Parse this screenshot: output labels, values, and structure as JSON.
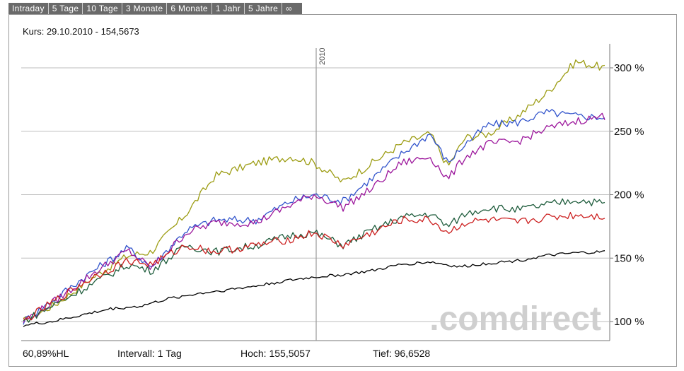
{
  "tabs": [
    "Intraday",
    "5 Tage",
    "10 Tage",
    "3 Monate",
    "6 Monate",
    "1 Jahr",
    "5 Jahre",
    "∞"
  ],
  "header": {
    "kurs_label": "Kurs: 29.10.2010 - 154,5673"
  },
  "watermark": ".comdirect",
  "footer": {
    "hl": "60,89%HL",
    "intervall": "Intervall: 1 Tag",
    "hoch": "Hoch: 155,5057",
    "tief": "Tief: 96,6528"
  },
  "colors": {
    "black": "#000000",
    "olive": "#9c9c12",
    "blue": "#3355cc",
    "purple": "#9c169c",
    "green": "#1e5c3c",
    "red": "#cc1f1f",
    "grid": "#bdbdbd"
  },
  "chart_data": {
    "type": "line",
    "y_ticks": [
      "100 %",
      "150 %",
      "200 %",
      "250 %",
      "300 %"
    ],
    "ylim": [
      85,
      310
    ],
    "xlim": [
      0,
      1
    ],
    "year_marker": {
      "label": "2010",
      "x": 0.5
    },
    "series": [
      {
        "color": "#9c9c12",
        "x": [
          0,
          0.06,
          0.12,
          0.18,
          0.22,
          0.28,
          0.33,
          0.4,
          0.46,
          0.5,
          0.55,
          0.6,
          0.65,
          0.7,
          0.73,
          0.76,
          0.8,
          0.85,
          0.9,
          0.95,
          1.0
        ],
        "y": [
          100,
          115,
          135,
          152,
          155,
          185,
          215,
          225,
          230,
          225,
          210,
          225,
          240,
          248,
          222,
          245,
          248,
          262,
          280,
          305,
          300
        ]
      },
      {
        "color": "#3355cc",
        "x": [
          0,
          0.06,
          0.12,
          0.18,
          0.22,
          0.28,
          0.33,
          0.4,
          0.46,
          0.5,
          0.55,
          0.6,
          0.65,
          0.7,
          0.73,
          0.76,
          0.8,
          0.85,
          0.9,
          0.95,
          1.0
        ],
        "y": [
          100,
          120,
          140,
          158,
          143,
          172,
          180,
          180,
          195,
          200,
          195,
          213,
          232,
          248,
          225,
          240,
          255,
          257,
          265,
          262,
          261
        ]
      },
      {
        "color": "#9c169c",
        "x": [
          0,
          0.06,
          0.12,
          0.18,
          0.22,
          0.28,
          0.33,
          0.4,
          0.46,
          0.5,
          0.55,
          0.6,
          0.65,
          0.7,
          0.73,
          0.76,
          0.8,
          0.85,
          0.9,
          0.95,
          1.0
        ],
        "y": [
          100,
          118,
          138,
          156,
          142,
          170,
          178,
          178,
          192,
          200,
          190,
          205,
          225,
          230,
          212,
          230,
          240,
          242,
          252,
          258,
          262
        ]
      },
      {
        "color": "#1e5c3c",
        "x": [
          0,
          0.06,
          0.12,
          0.18,
          0.22,
          0.28,
          0.33,
          0.4,
          0.46,
          0.5,
          0.55,
          0.6,
          0.65,
          0.7,
          0.73,
          0.76,
          0.8,
          0.85,
          0.9,
          0.95,
          1.0
        ],
        "y": [
          100,
          115,
          130,
          145,
          140,
          160,
          155,
          160,
          168,
          170,
          160,
          172,
          182,
          185,
          175,
          185,
          190,
          188,
          192,
          196,
          193
        ]
      },
      {
        "color": "#cc1f1f",
        "x": [
          0,
          0.06,
          0.12,
          0.18,
          0.22,
          0.28,
          0.33,
          0.4,
          0.46,
          0.5,
          0.55,
          0.6,
          0.65,
          0.7,
          0.73,
          0.76,
          0.8,
          0.85,
          0.9,
          0.95,
          1.0
        ],
        "y": [
          100,
          118,
          135,
          148,
          145,
          160,
          155,
          160,
          165,
          170,
          160,
          170,
          180,
          180,
          170,
          178,
          180,
          178,
          182,
          184,
          183
        ]
      },
      {
        "color": "#000000",
        "x": [
          0,
          0.05,
          0.1,
          0.15,
          0.2,
          0.25,
          0.3,
          0.35,
          0.4,
          0.45,
          0.5,
          0.55,
          0.6,
          0.65,
          0.7,
          0.75,
          0.8,
          0.85,
          0.9,
          0.95,
          1.0
        ],
        "y": [
          97,
          100,
          105,
          110,
          112,
          118,
          122,
          125,
          128,
          132,
          135,
          137,
          140,
          145,
          147,
          143,
          146,
          148,
          152,
          154,
          155
        ]
      }
    ]
  }
}
